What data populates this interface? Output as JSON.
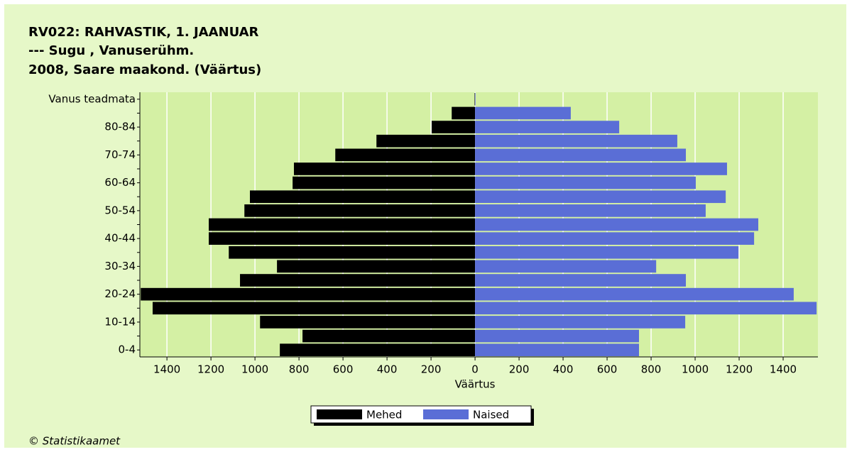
{
  "chart_data": {
    "type": "bar",
    "orientation": "horizontal",
    "title": "RV022: RAHVASTIK, 1. JAANUAR",
    "subtitle": [
      "--- Sugu , Vanuserühm.",
      "2008, Saare maakond. (Väärtus)"
    ],
    "x_label": "Väärtus",
    "source": "© Statistikaamet",
    "categories": [
      "0-4",
      null,
      "10-14",
      null,
      "20-24",
      null,
      "30-34",
      null,
      "40-44",
      null,
      "50-54",
      null,
      "60-64",
      null,
      "70-74",
      null,
      "80-84",
      null,
      "Vanus teadmata"
    ],
    "series": [
      {
        "name": "Mehed",
        "color": "#000000",
        "values": [
          -887,
          -784,
          -977,
          -1465,
          -1519,
          -1068,
          -900,
          -1119,
          -1210,
          -1210,
          -1048,
          -1023,
          -829,
          -823,
          -635,
          -448,
          -197,
          -106,
          -2
        ]
      },
      {
        "name": "Naised",
        "color": "#5a6ed6",
        "values": [
          745,
          745,
          955,
          1552,
          1448,
          958,
          823,
          1197,
          1268,
          1287,
          1048,
          1139,
          1003,
          1145,
          958,
          919,
          655,
          435,
          2
        ]
      }
    ],
    "xlim": [
      -1523,
      1558
    ],
    "xticks": [
      {
        "value": -1400,
        "label": "1400"
      },
      {
        "value": -1200,
        "label": "1200"
      },
      {
        "value": -1000,
        "label": "1000"
      },
      {
        "value": -800,
        "label": "800"
      },
      {
        "value": -600,
        "label": "600"
      },
      {
        "value": -400,
        "label": "400"
      },
      {
        "value": -200,
        "label": "200"
      },
      0,
      200,
      400,
      600,
      800,
      1000,
      1200,
      1400
    ],
    "grid": true,
    "legend": "bottom"
  }
}
